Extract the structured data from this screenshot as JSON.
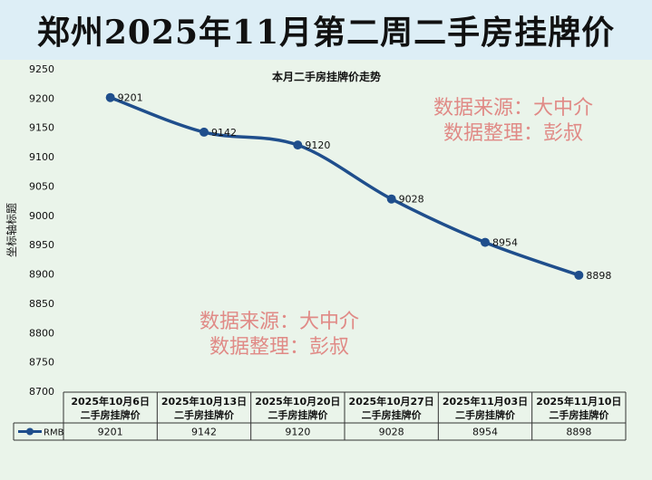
{
  "banner": {
    "title": "郑州2025年11月第二周二手房挂牌价"
  },
  "chart_data": {
    "type": "line",
    "title": "本月二手房挂牌价走势",
    "ylabel": "坐标轴标题",
    "xlabel": "",
    "ylim": [
      8700,
      9250
    ],
    "ytick_step": 50,
    "grid": false,
    "categories": [
      [
        "2025年10月6日",
        "二手房挂牌价"
      ],
      [
        "2025年10月13日",
        "二手房挂牌价"
      ],
      [
        "2025年10月20日",
        "二手房挂牌价"
      ],
      [
        "2025年10月27日",
        "二手房挂牌价"
      ],
      [
        "2025年11月03日",
        "二手房挂牌价"
      ],
      [
        "2025年11月10日",
        "二手房挂牌价"
      ]
    ],
    "series": [
      {
        "name": "RMB",
        "values": [
          9201,
          9142,
          9120,
          9028,
          8954,
          8898
        ]
      }
    ],
    "colors": {
      "line": "#1f4e8c",
      "text": "#111111",
      "axis": "#999999"
    }
  },
  "watermarks": [
    {
      "line1": "数据来源：大中介",
      "line2": "数据整理：彭叔"
    },
    {
      "line1": "数据来源：大中介",
      "line2": "数据整理：彭叔"
    }
  ]
}
